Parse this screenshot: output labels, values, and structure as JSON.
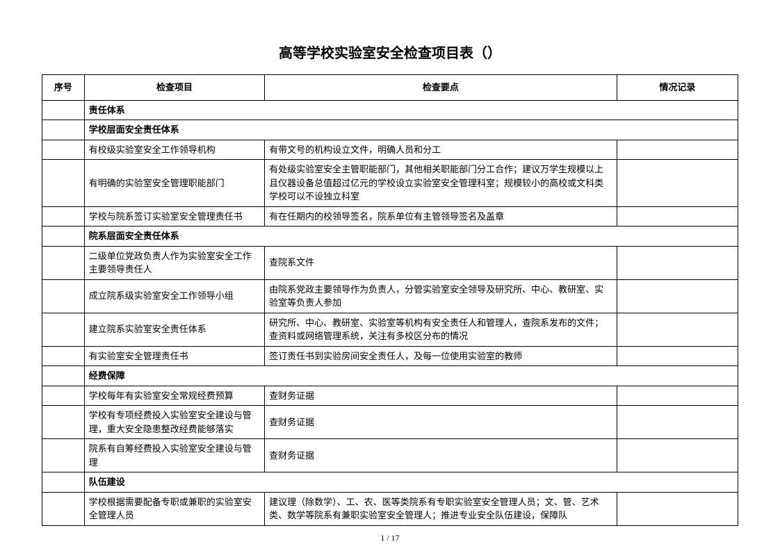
{
  "document": {
    "title": "高等学校实验室安全检查项目表（）",
    "page_number": "1 / 17"
  },
  "table": {
    "headers": {
      "seq": "序号",
      "item": "检查项目",
      "points": "检查要点",
      "record": "情况记录"
    },
    "rows": [
      {
        "type": "section",
        "text": "责任体系"
      },
      {
        "type": "section",
        "text": "学校层面安全责任体系"
      },
      {
        "type": "data",
        "item": "有校级实验室安全工作领导机构",
        "points": "有带文号的机构设立文件，明确人员和分工"
      },
      {
        "type": "data",
        "item": "有明确的实验室安全管理职能部门",
        "points": "有处级实验室安全主管职能部门，其他相关职能部门分工合作；建议万学生规模以上且仪器设备总值超过亿元的学校设立实验室安全管理科室；规模较小的高校或文科类学校可以不设独立科室"
      },
      {
        "type": "data",
        "item": "学校与院系签订实验室安全管理责任书",
        "points": "有在任期内的校领导签名，院系单位有主管领导签名及盖章"
      },
      {
        "type": "section",
        "text": "院系层面安全责任体系"
      },
      {
        "type": "data",
        "item": "二级单位党政负责人作为实验室安全工作主要领导责任人",
        "points": "查院系文件"
      },
      {
        "type": "data",
        "item": "成立院系级实验室安全工作领导小组",
        "points": "由院系党政主要领导作为负责人，分管实验室安全领导及研究所、中心、教研室、实验室等负责人参加"
      },
      {
        "type": "data",
        "item": "建立院系实验室安全责任体系",
        "points": "研究所、中心、教研室、实验室等机构有安全责任人和管理人，查院系发布的文件；查资料或网络管理系统，关注有多校区分布的情况"
      },
      {
        "type": "data",
        "item": "有实验室安全管理责任书",
        "points": "签订责任书到实验房间安全责任人，及每一位使用实验室的教师"
      },
      {
        "type": "section",
        "text": "经费保障"
      },
      {
        "type": "data",
        "item": "学校每年有实验室安全常规经费预算",
        "points": "查财务证据"
      },
      {
        "type": "data",
        "item": "学校有专项经费投入实验室安全建设与管理，重大安全隐患整改经费能够落实",
        "points": "查财务证据"
      },
      {
        "type": "data",
        "item": "院系有自筹经费投入实验室安全建设与管理",
        "points": "查财务证据"
      },
      {
        "type": "section",
        "text": "队伍建设"
      },
      {
        "type": "data",
        "item": "学校根据需要配备专职或兼职的实验室安全管理人员",
        "points": "建议理（除数学）、工、农、医等类院系有专职实验室安全管理人员；文、管、艺术类、数学等院系有兼职实验室安全管理人；推进专业安全队伍建设，保障队"
      }
    ]
  }
}
